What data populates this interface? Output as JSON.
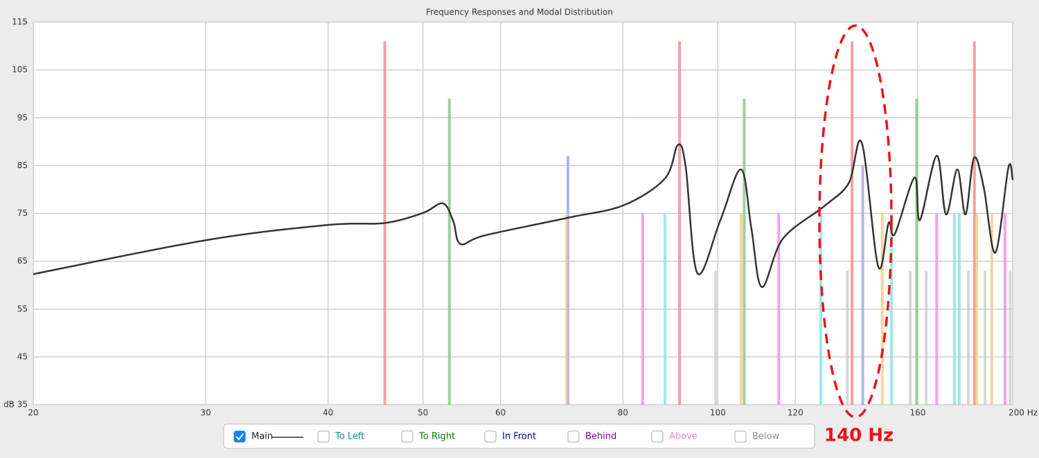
{
  "chart_data": {
    "type": "line",
    "title": "Frequency Responses and Modal Distribution",
    "log_x": true,
    "grid": true,
    "xlim": [
      20,
      200
    ],
    "ylim": [
      35,
      115
    ],
    "xticks": [
      20,
      30,
      40,
      50,
      60,
      80,
      100,
      120,
      160,
      {
        "value": 200,
        "label": "200 Hz"
      }
    ],
    "yticks": [
      {
        "value": 35,
        "label": "dB 35"
      },
      45,
      55,
      65,
      75,
      85,
      95,
      105,
      115
    ],
    "series": [
      {
        "name": "Main",
        "color": "#333333",
        "checked": true,
        "x": [
          20,
          30,
          40,
          45.7,
          50,
          52.4,
          53.7,
          54.6,
          57.8,
          70.3,
          80.1,
          88.3,
          91,
          92.7,
          95.3,
          100.6,
          105.6,
          108.2,
          110.9,
          116.5,
          128.4,
          136,
          140.3,
          145.8,
          149.4,
          151.6,
          158.8,
          160.8,
          167.3,
          171,
          175.6,
          179,
          182.6,
          186.8,
          192,
          198,
          200
        ],
        "values": [
          62.3,
          69.4,
          72.6,
          73.0,
          75.1,
          77.1,
          73.3,
          68.6,
          70.4,
          74.1,
          76.7,
          82.3,
          89.3,
          84.9,
          62.5,
          73.6,
          84.2,
          71.9,
          59.6,
          69.7,
          76.5,
          81.3,
          89.7,
          63.9,
          73.0,
          70.7,
          82.5,
          73.6,
          87.1,
          74.8,
          84.2,
          74.8,
          86.6,
          80.6,
          66.8,
          84.6,
          82.0
        ]
      },
      {
        "name": "To Left",
        "color": "#008b8b",
        "checked": false
      },
      {
        "name": "To Right",
        "color": "#007a00",
        "checked": false
      },
      {
        "name": "In Front",
        "color": "#0000a0",
        "checked": false
      },
      {
        "name": "Behind",
        "color": "#800080",
        "checked": false
      },
      {
        "name": "Above",
        "color": "#ee82ee",
        "checked": false
      },
      {
        "name": "Below",
        "color": "#909090",
        "checked": false
      }
    ],
    "modes": [
      {
        "color": "#f08080",
        "x": [
          45.7,
          91.4,
          137.1,
          182.8
        ],
        "values": [
          111,
          111,
          111,
          111
        ]
      },
      {
        "color": "#7cc27c",
        "x": [
          53.2,
          106.4,
          159.6
        ],
        "values": [
          99,
          99,
          99
        ]
      },
      {
        "color": "#9a9ae8",
        "x": [
          70.3,
          140.6
        ],
        "values": [
          87,
          85
        ]
      },
      {
        "color": "#ee82ee",
        "x": [
          83.8,
          115.4,
          167.3,
          196.4
        ],
        "values": [
          75,
          75,
          75,
          75
        ]
      },
      {
        "color": "#7fe0e0",
        "x": [
          88.3,
          127.4,
          150.4,
          174.4,
          176.4
        ],
        "values": [
          75,
          75,
          75,
          75,
          75
        ]
      },
      {
        "color": "#f0c87c",
        "x": [
          70.1,
          105.6,
          147.2,
          183.8,
          190.4
        ],
        "values": [
          75,
          75,
          75,
          75,
          75
        ]
      },
      {
        "color": "#c8c8c8",
        "x": [
          99.5,
          135.6,
          157.2,
          163.2,
          180.2,
          187.4,
          198.8
        ],
        "values": [
          63,
          63,
          63,
          63,
          63,
          63,
          63
        ]
      }
    ],
    "annotation": "140 Hz"
  }
}
